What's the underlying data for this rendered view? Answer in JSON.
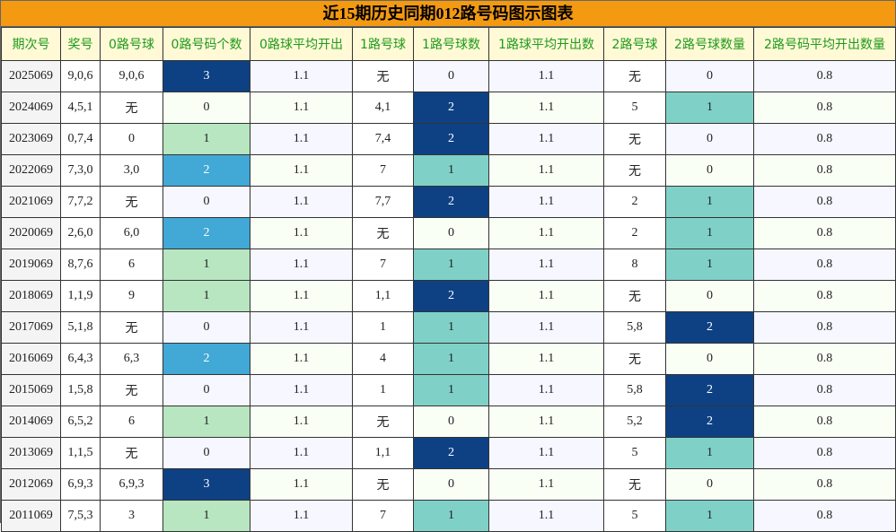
{
  "chart_data": {
    "type": "table",
    "title": "近15期历史同期012路号码图示图表",
    "headers": [
      "期次号",
      "奖号",
      "0路号球",
      "0路号码个数",
      "0路球平均开出",
      "1路号球",
      "1路号球数",
      "1路球平均开出数",
      "2路号球",
      "2路号球数量",
      "2路号码平均开出数量"
    ],
    "none_label": "无",
    "colors": {
      "count1_zero": "#b8e6c0",
      "count2_zero": "#42a8d6",
      "count3_zero": "#0e4184",
      "count1_onetwo": "#7fd1c8",
      "count2_onetwo": "#0e4184",
      "title_bg": "#f39a12",
      "header_bg": "#fff9d6",
      "header_text": "#1f9a1a"
    },
    "rows": [
      {
        "period": "2025069",
        "draw": "9,0,6",
        "r0": "9,0,6",
        "c0": 3,
        "a0": "1.1",
        "r1": "无",
        "c1": 0,
        "a1": "1.1",
        "r2": "无",
        "c2": 0,
        "a2": "0.8"
      },
      {
        "period": "2024069",
        "draw": "4,5,1",
        "r0": "无",
        "c0": 0,
        "a0": "1.1",
        "r1": "4,1",
        "c1": 2,
        "a1": "1.1",
        "r2": "5",
        "c2": 1,
        "a2": "0.8"
      },
      {
        "period": "2023069",
        "draw": "0,7,4",
        "r0": "0",
        "c0": 1,
        "a0": "1.1",
        "r1": "7,4",
        "c1": 2,
        "a1": "1.1",
        "r2": "无",
        "c2": 0,
        "a2": "0.8"
      },
      {
        "period": "2022069",
        "draw": "7,3,0",
        "r0": "3,0",
        "c0": 2,
        "a0": "1.1",
        "r1": "7",
        "c1": 1,
        "a1": "1.1",
        "r2": "无",
        "c2": 0,
        "a2": "0.8"
      },
      {
        "period": "2021069",
        "draw": "7,7,2",
        "r0": "无",
        "c0": 0,
        "a0": "1.1",
        "r1": "7,7",
        "c1": 2,
        "a1": "1.1",
        "r2": "2",
        "c2": 1,
        "a2": "0.8"
      },
      {
        "period": "2020069",
        "draw": "2,6,0",
        "r0": "6,0",
        "c0": 2,
        "a0": "1.1",
        "r1": "无",
        "c1": 0,
        "a1": "1.1",
        "r2": "2",
        "c2": 1,
        "a2": "0.8"
      },
      {
        "period": "2019069",
        "draw": "8,7,6",
        "r0": "6",
        "c0": 1,
        "a0": "1.1",
        "r1": "7",
        "c1": 1,
        "a1": "1.1",
        "r2": "8",
        "c2": 1,
        "a2": "0.8"
      },
      {
        "period": "2018069",
        "draw": "1,1,9",
        "r0": "9",
        "c0": 1,
        "a0": "1.1",
        "r1": "1,1",
        "c1": 2,
        "a1": "1.1",
        "r2": "无",
        "c2": 0,
        "a2": "0.8"
      },
      {
        "period": "2017069",
        "draw": "5,1,8",
        "r0": "无",
        "c0": 0,
        "a0": "1.1",
        "r1": "1",
        "c1": 1,
        "a1": "1.1",
        "r2": "5,8",
        "c2": 2,
        "a2": "0.8"
      },
      {
        "period": "2016069",
        "draw": "6,4,3",
        "r0": "6,3",
        "c0": 2,
        "a0": "1.1",
        "r1": "4",
        "c1": 1,
        "a1": "1.1",
        "r2": "无",
        "c2": 0,
        "a2": "0.8"
      },
      {
        "period": "2015069",
        "draw": "1,5,8",
        "r0": "无",
        "c0": 0,
        "a0": "1.1",
        "r1": "1",
        "c1": 1,
        "a1": "1.1",
        "r2": "5,8",
        "c2": 2,
        "a2": "0.8"
      },
      {
        "period": "2014069",
        "draw": "6,5,2",
        "r0": "6",
        "c0": 1,
        "a0": "1.1",
        "r1": "无",
        "c1": 0,
        "a1": "1.1",
        "r2": "5,2",
        "c2": 2,
        "a2": "0.8"
      },
      {
        "period": "2013069",
        "draw": "1,1,5",
        "r0": "无",
        "c0": 0,
        "a0": "1.1",
        "r1": "1,1",
        "c1": 2,
        "a1": "1.1",
        "r2": "5",
        "c2": 1,
        "a2": "0.8"
      },
      {
        "period": "2012069",
        "draw": "6,9,3",
        "r0": "6,9,3",
        "c0": 3,
        "a0": "1.1",
        "r1": "无",
        "c1": 0,
        "a1": "1.1",
        "r2": "无",
        "c2": 0,
        "a2": "0.8"
      },
      {
        "period": "2011069",
        "draw": "7,5,3",
        "r0": "3",
        "c0": 1,
        "a0": "1.1",
        "r1": "7",
        "c1": 1,
        "a1": "1.1",
        "r2": "5",
        "c2": 1,
        "a2": "0.8"
      }
    ]
  }
}
